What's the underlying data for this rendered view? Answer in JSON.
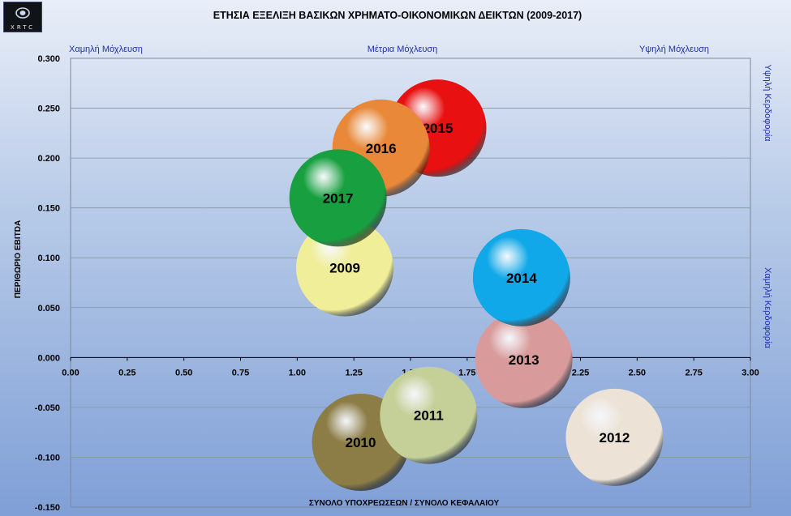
{
  "header": {
    "logo_text": "XRTC",
    "title": "ΕΤΗΣΙΑ ΕΞΕΛΙΞΗ ΒΑΣΙΚΩΝ ΧΡΗΜΑΤΟ-ΟΙΚΟΝΟΜΙΚΩΝ ΔΕΙΚΤΩΝ  (2009-2017)"
  },
  "chart_data": {
    "type": "bubble",
    "title": "ΕΤΗΣΙΑ ΕΞΕΛΙΞΗ ΒΑΣΙΚΩΝ ΧΡΗΜΑΤΟ-ΟΙΚΟΝΟΜΙΚΩΝ ΔΕΙΚΤΩΝ  (2009-2017)",
    "xlabel": "ΣΥΝΟΛΟ ΥΠΟΧΡΕΩΣΕΩΝ  / ΣΥΝΟΛΟ ΚΕΦΑΛΑΙΟΥ",
    "ylabel": "ΠΕΡΙΘΩΡΙΟ   EBITDA",
    "xlim": [
      0,
      3
    ],
    "ylim": [
      -0.15,
      0.3
    ],
    "x_ticks": [
      "0.00",
      "0.25",
      "0.50",
      "0.75",
      "1.00",
      "1.25",
      "1.50",
      "1.75",
      "2.00",
      "2.25",
      "2.50",
      "2.75",
      "3.00"
    ],
    "y_ticks": [
      "0.300",
      "0.250",
      "0.200",
      "0.150",
      "0.100",
      "0.050",
      "0.000",
      "-0.050",
      "-0.100",
      "-0.150"
    ],
    "grid": true,
    "top_annotations": [
      "Χαμηλή Μόχλευση",
      "Μέτρια Μόχλευση",
      "Υψηλή  Μόχλευση"
    ],
    "right_annotations": [
      "Υψηλή Κερδοφορία",
      "Χαμηλή Κερδοφορία"
    ],
    "points": [
      {
        "label": "2009",
        "x": 1.21,
        "y": 0.09,
        "color": "#f0ee98"
      },
      {
        "label": "2010",
        "x": 1.28,
        "y": -0.085,
        "color": "#8c7c45"
      },
      {
        "label": "2011",
        "x": 1.58,
        "y": -0.058,
        "color": "#c4d098"
      },
      {
        "label": "2012",
        "x": 2.4,
        "y": -0.08,
        "color": "#ece2d6"
      },
      {
        "label": "2013",
        "x": 2.0,
        "y": -0.002,
        "color": "#d89a9a"
      },
      {
        "label": "2014",
        "x": 1.99,
        "y": 0.08,
        "color": "#10a8e8"
      },
      {
        "label": "2015",
        "x": 1.62,
        "y": 0.23,
        "color": "#e81010"
      },
      {
        "label": "2016",
        "x": 1.37,
        "y": 0.21,
        "color": "#e88838"
      },
      {
        "label": "2017",
        "x": 1.18,
        "y": 0.16,
        "color": "#18a040"
      }
    ]
  }
}
